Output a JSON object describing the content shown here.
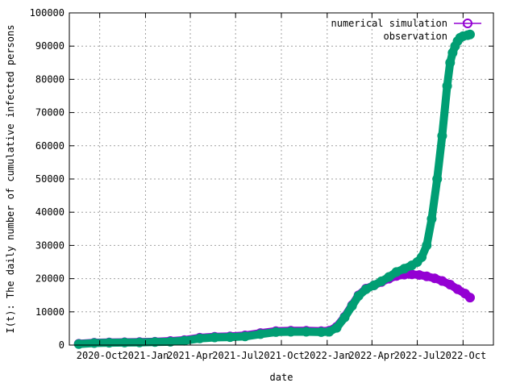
{
  "chart_data": {
    "type": "scatter",
    "title": "",
    "xlabel": "date",
    "ylabel": "I(t): The daily number of cumulative infected persons",
    "ylim": [
      0,
      100000
    ],
    "xlim": [
      "2020-08-01",
      "2022-12-01"
    ],
    "x_ticks": [
      "2020-10-01",
      "2021-01-01",
      "2021-04-01",
      "2021-07-01",
      "2021-10-01",
      "2022-01-01",
      "2022-04-01",
      "2022-07-01",
      "2022-10-01"
    ],
    "x_tick_labels": [
      "2020-Oct",
      "2021-Jan",
      "2021-Apr",
      "2021-Jul",
      "2021-Oct",
      "2022-Jan",
      "2022-Apr",
      "2022-Jul",
      "2022-Oct"
    ],
    "y_ticks": [
      0,
      10000,
      20000,
      30000,
      40000,
      50000,
      60000,
      70000,
      80000,
      90000,
      100000
    ],
    "y_tick_labels": [
      "0",
      "10000",
      "20000",
      "30000",
      "40000",
      "50000",
      "60000",
      "70000",
      "80000",
      "90000",
      "100000"
    ],
    "grid": true,
    "legend_position": "top-right",
    "series": [
      {
        "name": "numerical simulation",
        "color": "#9400d3",
        "marker": "circle-line",
        "x": [
          "2020-08-20",
          "2020-09-20",
          "2020-10-20",
          "2020-11-20",
          "2020-12-20",
          "2021-01-20",
          "2021-02-20",
          "2021-03-20",
          "2021-04-20",
          "2021-05-20",
          "2021-06-20",
          "2021-07-20",
          "2021-08-20",
          "2021-09-20",
          "2021-10-20",
          "2021-11-20",
          "2021-12-20",
          "2022-01-05",
          "2022-01-20",
          "2022-02-05",
          "2022-02-20",
          "2022-03-05",
          "2022-03-20",
          "2022-04-05",
          "2022-04-20",
          "2022-05-05",
          "2022-05-20",
          "2022-06-05",
          "2022-06-20",
          "2022-07-05",
          "2022-07-20",
          "2022-08-05",
          "2022-08-20",
          "2022-09-05",
          "2022-09-20",
          "2022-10-05",
          "2022-10-15"
        ],
        "y": [
          400,
          700,
          800,
          850,
          900,
          1000,
          1200,
          1500,
          2200,
          2500,
          2600,
          2900,
          3600,
          4200,
          4300,
          4300,
          4200,
          4300,
          5500,
          8500,
          12000,
          15000,
          17000,
          18000,
          19000,
          20000,
          20800,
          21200,
          21300,
          21100,
          20700,
          20100,
          19300,
          18200,
          16800,
          15500,
          14300
        ]
      },
      {
        "name": "observation",
        "color": "#009e73",
        "marker": "filled-circle",
        "x": [
          "2020-08-20",
          "2020-09-20",
          "2020-10-20",
          "2020-11-20",
          "2020-12-20",
          "2021-01-20",
          "2021-02-20",
          "2021-03-20",
          "2021-04-20",
          "2021-05-20",
          "2021-06-20",
          "2021-07-20",
          "2021-08-20",
          "2021-09-20",
          "2021-10-20",
          "2021-11-20",
          "2021-12-20",
          "2022-01-05",
          "2022-01-20",
          "2022-02-05",
          "2022-02-20",
          "2022-03-05",
          "2022-03-20",
          "2022-04-05",
          "2022-04-20",
          "2022-05-05",
          "2022-05-20",
          "2022-06-05",
          "2022-06-20",
          "2022-07-01",
          "2022-07-10",
          "2022-07-20",
          "2022-07-30",
          "2022-08-10",
          "2022-08-20",
          "2022-08-30",
          "2022-09-05",
          "2022-09-10",
          "2022-09-15",
          "2022-09-20",
          "2022-09-25",
          "2022-10-01",
          "2022-10-10",
          "2022-10-15"
        ],
        "y": [
          300,
          600,
          700,
          750,
          800,
          900,
          1000,
          1300,
          2000,
          2300,
          2400,
          2600,
          3300,
          3900,
          4000,
          4000,
          3900,
          4000,
          5200,
          8300,
          11800,
          14800,
          16800,
          18000,
          19200,
          20500,
          22000,
          23000,
          24000,
          25000,
          26500,
          30000,
          38000,
          50000,
          63000,
          78000,
          85000,
          88000,
          90000,
          91500,
          92500,
          93000,
          93300,
          93500
        ]
      }
    ]
  }
}
